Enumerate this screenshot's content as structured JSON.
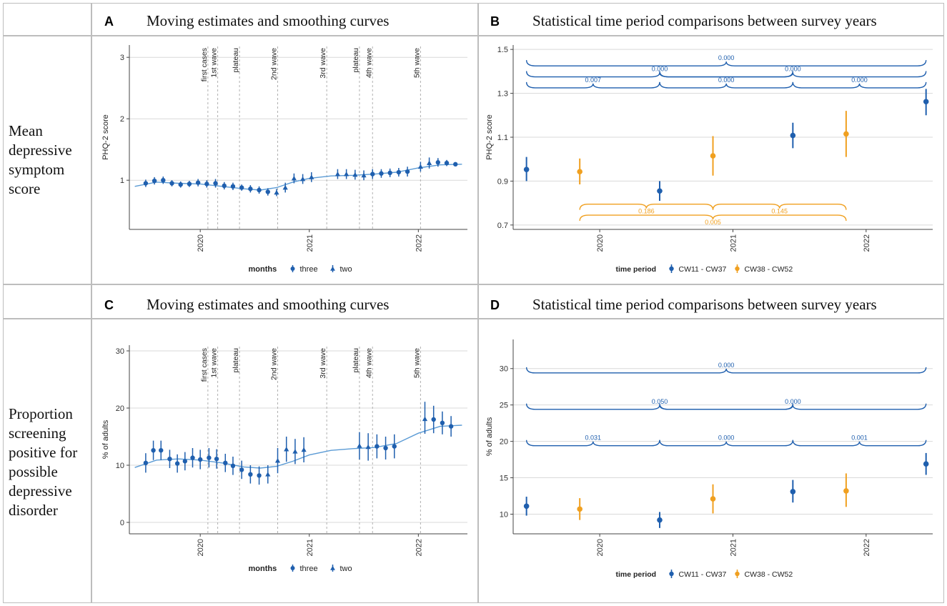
{
  "colors": {
    "blue": "#1f5fae",
    "orange": "#f0a020",
    "curve": "#5b9bd5",
    "grid": "#d9d9d9",
    "axis": "#444444",
    "dash": "#b0b0b0"
  },
  "row_labels": {
    "top": [
      "Mean",
      "depressive",
      "symptom",
      "score"
    ],
    "bottom": [
      "Proportion",
      "screening",
      "positive for",
      "possible",
      "depressive",
      "disorder"
    ]
  },
  "panels": {
    "A": {
      "letter": "A",
      "title": "Moving estimates and smoothing curves"
    },
    "B": {
      "letter": "B",
      "title": "Statistical time period comparisons between survey years"
    },
    "C": {
      "letter": "C",
      "title": "Moving estimates and smoothing curves"
    },
    "D": {
      "letter": "D",
      "title": "Statistical time period comparisons between survey years"
    }
  },
  "chart_data": [
    {
      "id": "A",
      "type": "scatter",
      "title": "Moving estimates and smoothing curves",
      "xlabel": "",
      "ylabel": "PHQ-2 score",
      "xlim": [
        2019.35,
        2022.45
      ],
      "ylim": [
        0.2,
        3.2
      ],
      "yticks": [
        1,
        2,
        3
      ],
      "ytick_labels": [
        "1",
        "2",
        "3"
      ],
      "xticks": [
        2020,
        2021,
        2022
      ],
      "xtick_labels": [
        "2020",
        "2021",
        "2022"
      ],
      "event_lines": [
        {
          "x": 2020.07,
          "label": "first cases"
        },
        {
          "x": 2020.16,
          "label": "1st wave"
        },
        {
          "x": 2020.36,
          "label": "plateau"
        },
        {
          "x": 2020.71,
          "label": "2nd wave"
        },
        {
          "x": 2021.16,
          "label": "3rd wave"
        },
        {
          "x": 2021.46,
          "label": "plateau"
        },
        {
          "x": 2021.58,
          "label": "4th wave"
        },
        {
          "x": 2022.02,
          "label": "5th wave"
        }
      ],
      "legend": {
        "title": "months",
        "entries": [
          "three",
          "two"
        ]
      },
      "smooth": {
        "x": [
          2019.4,
          2019.6,
          2019.8,
          2020.0,
          2020.2,
          2020.4,
          2020.55,
          2020.7,
          2020.85,
          2021.0,
          2021.2,
          2021.4,
          2021.6,
          2021.8,
          2022.0,
          2022.2,
          2022.4
        ],
        "y": [
          0.9,
          0.97,
          0.95,
          0.94,
          0.9,
          0.86,
          0.84,
          0.88,
          0.97,
          1.03,
          1.07,
          1.08,
          1.1,
          1.13,
          1.2,
          1.25,
          1.26
        ]
      },
      "points": [
        {
          "x": 2019.5,
          "y": 0.95,
          "lo": 0.89,
          "hi": 1.01,
          "m": "three"
        },
        {
          "x": 2019.58,
          "y": 0.99,
          "lo": 0.93,
          "hi": 1.05,
          "m": "three"
        },
        {
          "x": 2019.66,
          "y": 1.0,
          "lo": 0.94,
          "hi": 1.06,
          "m": "three"
        },
        {
          "x": 2019.74,
          "y": 0.95,
          "lo": 0.9,
          "hi": 1.0,
          "m": "three"
        },
        {
          "x": 2019.82,
          "y": 0.93,
          "lo": 0.88,
          "hi": 0.98,
          "m": "three"
        },
        {
          "x": 2019.9,
          "y": 0.94,
          "lo": 0.89,
          "hi": 0.99,
          "m": "three"
        },
        {
          "x": 2019.98,
          "y": 0.96,
          "lo": 0.9,
          "hi": 1.02,
          "m": "three"
        },
        {
          "x": 2020.06,
          "y": 0.94,
          "lo": 0.88,
          "hi": 1.0,
          "m": "three"
        },
        {
          "x": 2020.14,
          "y": 0.95,
          "lo": 0.88,
          "hi": 1.02,
          "m": "three"
        },
        {
          "x": 2020.22,
          "y": 0.91,
          "lo": 0.85,
          "hi": 0.97,
          "m": "three"
        },
        {
          "x": 2020.3,
          "y": 0.9,
          "lo": 0.84,
          "hi": 0.96,
          "m": "three"
        },
        {
          "x": 2020.38,
          "y": 0.88,
          "lo": 0.83,
          "hi": 0.93,
          "m": "three"
        },
        {
          "x": 2020.46,
          "y": 0.86,
          "lo": 0.8,
          "hi": 0.92,
          "m": "three"
        },
        {
          "x": 2020.54,
          "y": 0.84,
          "lo": 0.78,
          "hi": 0.9,
          "m": "three"
        },
        {
          "x": 2020.62,
          "y": 0.81,
          "lo": 0.75,
          "hi": 0.87,
          "m": "three"
        },
        {
          "x": 2020.7,
          "y": 0.8,
          "lo": 0.74,
          "hi": 0.86,
          "m": "two"
        },
        {
          "x": 2020.78,
          "y": 0.88,
          "lo": 0.8,
          "hi": 0.96,
          "m": "two"
        },
        {
          "x": 2020.86,
          "y": 1.03,
          "lo": 0.95,
          "hi": 1.11,
          "m": "two"
        },
        {
          "x": 2020.94,
          "y": 1.02,
          "lo": 0.94,
          "hi": 1.1,
          "m": "two"
        },
        {
          "x": 2021.02,
          "y": 1.05,
          "lo": 0.97,
          "hi": 1.13,
          "m": "two"
        },
        {
          "x": 2021.26,
          "y": 1.1,
          "lo": 1.02,
          "hi": 1.18,
          "m": "two"
        },
        {
          "x": 2021.34,
          "y": 1.1,
          "lo": 1.02,
          "hi": 1.18,
          "m": "two"
        },
        {
          "x": 2021.42,
          "y": 1.09,
          "lo": 1.01,
          "hi": 1.17,
          "m": "two"
        },
        {
          "x": 2021.5,
          "y": 1.08,
          "lo": 1.0,
          "hi": 1.16,
          "m": "two"
        },
        {
          "x": 2021.58,
          "y": 1.1,
          "lo": 1.02,
          "hi": 1.18,
          "m": "three"
        },
        {
          "x": 2021.66,
          "y": 1.11,
          "lo": 1.04,
          "hi": 1.18,
          "m": "three"
        },
        {
          "x": 2021.74,
          "y": 1.12,
          "lo": 1.05,
          "hi": 1.19,
          "m": "three"
        },
        {
          "x": 2021.82,
          "y": 1.13,
          "lo": 1.06,
          "hi": 1.2,
          "m": "three"
        },
        {
          "x": 2021.9,
          "y": 1.14,
          "lo": 1.06,
          "hi": 1.22,
          "m": "three"
        },
        {
          "x": 2022.02,
          "y": 1.22,
          "lo": 1.14,
          "hi": 1.3,
          "m": "two"
        },
        {
          "x": 2022.1,
          "y": 1.28,
          "lo": 1.19,
          "hi": 1.37,
          "m": "two"
        },
        {
          "x": 2022.18,
          "y": 1.29,
          "lo": 1.22,
          "hi": 1.36,
          "m": "three"
        },
        {
          "x": 2022.26,
          "y": 1.28,
          "lo": 1.23,
          "hi": 1.33,
          "m": "three"
        },
        {
          "x": 2022.34,
          "y": 1.26,
          "lo": 1.23,
          "hi": 1.29,
          "m": "three"
        }
      ]
    },
    {
      "id": "B",
      "type": "scatter",
      "title": "Statistical time period comparisons between survey years",
      "xlabel": "",
      "ylabel": "PHQ-2 score",
      "xlim": [
        2019.35,
        2022.5
      ],
      "ylim": [
        0.68,
        1.52
      ],
      "yticks": [
        0.7,
        0.9,
        1.1,
        1.3,
        1.5
      ],
      "ytick_labels": [
        "0.7",
        "0.9",
        "1.1",
        "1.3",
        "1.5"
      ],
      "xticks": [
        2020,
        2021,
        2022
      ],
      "xtick_labels": [
        "2020",
        "2021",
        "2022"
      ],
      "legend": {
        "title": "time period",
        "entries": [
          "CW11 - CW37",
          "CW38 - CW52"
        ]
      },
      "points": [
        {
          "x": 2019.45,
          "y": 0.953,
          "lo": 0.9,
          "hi": 1.01,
          "p": "CW11 - CW37"
        },
        {
          "x": 2019.85,
          "y": 0.943,
          "lo": 0.885,
          "hi": 1.003,
          "p": "CW38 - CW52"
        },
        {
          "x": 2020.45,
          "y": 0.855,
          "lo": 0.81,
          "hi": 0.9,
          "p": "CW11 - CW37"
        },
        {
          "x": 2020.85,
          "y": 1.015,
          "lo": 0.925,
          "hi": 1.105,
          "p": "CW38 - CW52"
        },
        {
          "x": 2021.45,
          "y": 1.108,
          "lo": 1.05,
          "hi": 1.166,
          "p": "CW11 - CW37"
        },
        {
          "x": 2021.85,
          "y": 1.115,
          "lo": 1.01,
          "hi": 1.22,
          "p": "CW38 - CW52"
        },
        {
          "x": 2022.45,
          "y": 1.262,
          "lo": 1.2,
          "hi": 1.32,
          "p": "CW11 - CW37"
        }
      ],
      "comparisons": [
        {
          "from": 2019.45,
          "to": 2022.45,
          "y": 1.425,
          "label": "0.000",
          "period": "CW11 - CW37",
          "dir": "up"
        },
        {
          "from": 2019.45,
          "to": 2021.45,
          "y": 1.375,
          "label": "0.000",
          "period": "CW11 - CW37",
          "dir": "up"
        },
        {
          "from": 2020.45,
          "to": 2022.45,
          "y": 1.375,
          "label": "0.000",
          "period": "CW11 - CW37",
          "dir": "up"
        },
        {
          "from": 2019.45,
          "to": 2020.45,
          "y": 1.325,
          "label": "0.007",
          "period": "CW11 - CW37",
          "dir": "up"
        },
        {
          "from": 2020.45,
          "to": 2021.45,
          "y": 1.325,
          "label": "0.000",
          "period": "CW11 - CW37",
          "dir": "up"
        },
        {
          "from": 2021.45,
          "to": 2022.45,
          "y": 1.325,
          "label": "0.000",
          "period": "CW11 - CW37",
          "dir": "up"
        },
        {
          "from": 2019.85,
          "to": 2020.85,
          "y": 0.795,
          "label": "0.186",
          "period": "CW38 - CW52",
          "dir": "down"
        },
        {
          "from": 2020.85,
          "to": 2021.85,
          "y": 0.795,
          "label": "0.145",
          "period": "CW38 - CW52",
          "dir": "down"
        },
        {
          "from": 2019.85,
          "to": 2021.85,
          "y": 0.745,
          "label": "0.005",
          "period": "CW38 - CW52",
          "dir": "down"
        }
      ]
    },
    {
      "id": "C",
      "type": "scatter",
      "title": "Moving estimates and smoothing curves",
      "xlabel": "",
      "ylabel": "% of adults",
      "xlim": [
        2019.35,
        2022.45
      ],
      "ylim": [
        -2,
        31
      ],
      "yticks": [
        0,
        10,
        20,
        30
      ],
      "ytick_labels": [
        "0",
        "10",
        "20",
        "30"
      ],
      "xticks": [
        2020,
        2021,
        2022
      ],
      "xtick_labels": [
        "2020",
        "2021",
        "2022"
      ],
      "event_lines": [
        {
          "x": 2020.07,
          "label": "first cases"
        },
        {
          "x": 2020.16,
          "label": "1st wave"
        },
        {
          "x": 2020.36,
          "label": "plateau"
        },
        {
          "x": 2020.71,
          "label": "2nd wave"
        },
        {
          "x": 2021.16,
          "label": "3rd wave"
        },
        {
          "x": 2021.46,
          "label": "plateau"
        },
        {
          "x": 2021.58,
          "label": "4th wave"
        },
        {
          "x": 2022.02,
          "label": "5th wave"
        }
      ],
      "legend": {
        "title": "months",
        "entries": [
          "three",
          "two"
        ]
      },
      "smooth": {
        "x": [
          2019.4,
          2019.6,
          2019.8,
          2020.0,
          2020.2,
          2020.4,
          2020.55,
          2020.7,
          2020.85,
          2021.0,
          2021.2,
          2021.4,
          2021.6,
          2021.8,
          2022.0,
          2022.2,
          2022.4
        ],
        "y": [
          9.6,
          10.9,
          11.1,
          10.9,
          10.4,
          9.7,
          9.5,
          9.8,
          10.7,
          11.8,
          12.6,
          12.9,
          13.1,
          13.8,
          15.6,
          16.8,
          17.0
        ]
      },
      "points": [
        {
          "x": 2019.5,
          "y": 10.4,
          "lo": 8.7,
          "hi": 12.1,
          "m": "three"
        },
        {
          "x": 2019.57,
          "y": 12.6,
          "lo": 10.9,
          "hi": 14.3,
          "m": "three"
        },
        {
          "x": 2019.64,
          "y": 12.6,
          "lo": 10.9,
          "hi": 14.3,
          "m": "three"
        },
        {
          "x": 2019.72,
          "y": 11.1,
          "lo": 9.5,
          "hi": 12.7,
          "m": "three"
        },
        {
          "x": 2019.79,
          "y": 10.3,
          "lo": 8.7,
          "hi": 11.9,
          "m": "three"
        },
        {
          "x": 2019.86,
          "y": 10.7,
          "lo": 9.1,
          "hi": 12.3,
          "m": "three"
        },
        {
          "x": 2019.93,
          "y": 11.3,
          "lo": 9.6,
          "hi": 13.0,
          "m": "three"
        },
        {
          "x": 2020.0,
          "y": 11.0,
          "lo": 9.3,
          "hi": 12.7,
          "m": "three"
        },
        {
          "x": 2020.08,
          "y": 11.3,
          "lo": 9.6,
          "hi": 13.0,
          "m": "three"
        },
        {
          "x": 2020.15,
          "y": 11.1,
          "lo": 9.4,
          "hi": 12.8,
          "m": "three"
        },
        {
          "x": 2020.23,
          "y": 10.4,
          "lo": 8.8,
          "hi": 12.0,
          "m": "three"
        },
        {
          "x": 2020.3,
          "y": 9.9,
          "lo": 8.3,
          "hi": 11.5,
          "m": "three"
        },
        {
          "x": 2020.38,
          "y": 9.2,
          "lo": 7.6,
          "hi": 10.8,
          "m": "three"
        },
        {
          "x": 2020.46,
          "y": 8.4,
          "lo": 6.8,
          "hi": 10.0,
          "m": "three"
        },
        {
          "x": 2020.54,
          "y": 8.2,
          "lo": 6.6,
          "hi": 9.8,
          "m": "three"
        },
        {
          "x": 2020.62,
          "y": 8.4,
          "lo": 6.8,
          "hi": 10.0,
          "m": "two"
        },
        {
          "x": 2020.71,
          "y": 10.8,
          "lo": 8.6,
          "hi": 13.0,
          "m": "two"
        },
        {
          "x": 2020.79,
          "y": 12.8,
          "lo": 10.6,
          "hi": 15.0,
          "m": "two"
        },
        {
          "x": 2020.87,
          "y": 12.4,
          "lo": 10.2,
          "hi": 14.6,
          "m": "two"
        },
        {
          "x": 2020.95,
          "y": 12.7,
          "lo": 10.5,
          "hi": 14.9,
          "m": "two"
        },
        {
          "x": 2021.46,
          "y": 13.4,
          "lo": 11.0,
          "hi": 15.8,
          "m": "two"
        },
        {
          "x": 2021.54,
          "y": 13.2,
          "lo": 10.8,
          "hi": 15.6,
          "m": "two"
        },
        {
          "x": 2021.62,
          "y": 13.3,
          "lo": 11.2,
          "hi": 15.4,
          "m": "three"
        },
        {
          "x": 2021.7,
          "y": 13.0,
          "lo": 11.0,
          "hi": 15.0,
          "m": "three"
        },
        {
          "x": 2021.78,
          "y": 13.3,
          "lo": 11.2,
          "hi": 15.4,
          "m": "three"
        },
        {
          "x": 2022.06,
          "y": 18.1,
          "lo": 15.5,
          "hi": 21.1,
          "m": "two"
        },
        {
          "x": 2022.14,
          "y": 18.0,
          "lo": 15.6,
          "hi": 20.4,
          "m": "three"
        },
        {
          "x": 2022.22,
          "y": 17.4,
          "lo": 15.4,
          "hi": 19.4,
          "m": "three"
        },
        {
          "x": 2022.3,
          "y": 16.8,
          "lo": 15.0,
          "hi": 18.6,
          "m": "three"
        }
      ]
    },
    {
      "id": "D",
      "type": "scatter",
      "title": "Statistical time period comparisons between survey years",
      "xlabel": "",
      "ylabel": "% of adults",
      "xlim": [
        2019.35,
        2022.5
      ],
      "ylim": [
        7.3,
        34.0
      ],
      "yticks": [
        10,
        15,
        20,
        25,
        30
      ],
      "ytick_labels": [
        "10",
        "15",
        "20",
        "25",
        "30"
      ],
      "xticks": [
        2020,
        2021,
        2022
      ],
      "xtick_labels": [
        "2020",
        "2021",
        "2022"
      ],
      "legend": {
        "title": "time period",
        "entries": [
          "CW11 - CW37",
          "CW38 - CW52"
        ]
      },
      "points": [
        {
          "x": 2019.45,
          "y": 11.1,
          "lo": 9.8,
          "hi": 12.4,
          "p": "CW11 - CW37"
        },
        {
          "x": 2019.85,
          "y": 10.7,
          "lo": 9.2,
          "hi": 12.2,
          "p": "CW38 - CW52"
        },
        {
          "x": 2020.45,
          "y": 9.2,
          "lo": 8.1,
          "hi": 10.3,
          "p": "CW11 - CW37"
        },
        {
          "x": 2020.85,
          "y": 12.1,
          "lo": 10.1,
          "hi": 14.1,
          "p": "CW38 - CW52"
        },
        {
          "x": 2021.45,
          "y": 13.1,
          "lo": 11.6,
          "hi": 14.7,
          "p": "CW11 - CW37"
        },
        {
          "x": 2021.85,
          "y": 13.2,
          "lo": 11.0,
          "hi": 15.6,
          "p": "CW38 - CW52"
        },
        {
          "x": 2022.45,
          "y": 16.9,
          "lo": 15.4,
          "hi": 18.4,
          "p": "CW11 - CW37"
        }
      ],
      "comparisons": [
        {
          "from": 2019.45,
          "to": 2022.45,
          "y": 29.4,
          "label": "0.000",
          "period": "CW11 - CW37",
          "dir": "up"
        },
        {
          "from": 2019.45,
          "to": 2021.45,
          "y": 24.4,
          "label": "0.050",
          "period": "CW11 - CW37",
          "dir": "up"
        },
        {
          "from": 2020.45,
          "to": 2022.45,
          "y": 24.4,
          "label": "0.000",
          "period": "CW11 - CW37",
          "dir": "up"
        },
        {
          "from": 2019.45,
          "to": 2020.45,
          "y": 19.4,
          "label": "0.031",
          "period": "CW11 - CW37",
          "dir": "up"
        },
        {
          "from": 2020.45,
          "to": 2021.45,
          "y": 19.4,
          "label": "0.000",
          "period": "CW11 - CW37",
          "dir": "up"
        },
        {
          "from": 2021.45,
          "to": 2022.45,
          "y": 19.4,
          "label": "0.001",
          "period": "CW11 - CW37",
          "dir": "up"
        }
      ]
    }
  ]
}
